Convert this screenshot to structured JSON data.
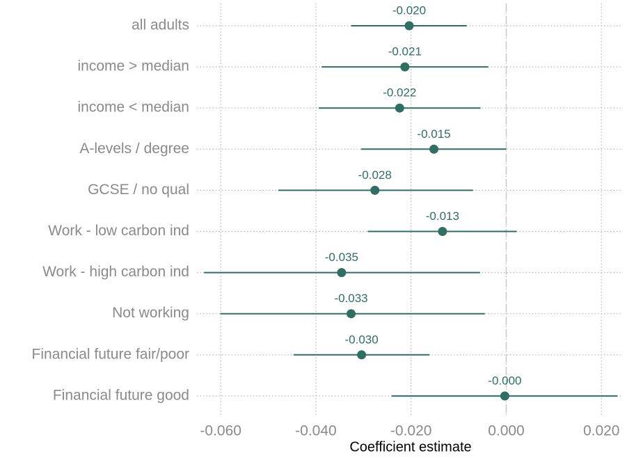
{
  "chart_data": {
    "type": "coefplot",
    "x_label": "Coefficient estimate",
    "categories": [
      "all adults",
      "income > median",
      "income < median",
      "A-levels / degree",
      "GCSE / no qual",
      "Work - low carbon ind",
      "Work - high carbon ind",
      "Not working",
      "Financial future fair/poor",
      "Financial future good"
    ],
    "values": [
      -0.0204,
      -0.0213,
      -0.0224,
      -0.0152,
      -0.0276,
      -0.0134,
      -0.0346,
      -0.0326,
      -0.0304,
      -0.0003
    ],
    "value_labels": [
      "-0.020",
      "-0.021",
      "-0.022",
      "-0.015",
      "-0.028",
      "-0.013",
      "-0.035",
      "-0.033",
      "-0.030",
      "-0.000"
    ],
    "lower": [
      -0.0326,
      -0.0388,
      -0.0394,
      -0.0305,
      -0.0479,
      -0.0291,
      -0.0635,
      -0.0601,
      -0.0447,
      -0.0241
    ],
    "upper": [
      -0.0083,
      -0.0038,
      -0.0054,
      0.0,
      -0.007,
      0.0022,
      -0.0055,
      -0.0045,
      -0.0161,
      0.0234
    ],
    "color": "#2f6e63",
    "xlim": [
      -0.065,
      0.0245
    ],
    "xticks": [
      {
        "value": -0.06,
        "label": "-0.060"
      },
      {
        "value": -0.04,
        "label": "-0.040"
      },
      {
        "value": -0.02,
        "label": "-0.020"
      },
      {
        "value": 0,
        "label": "0.000"
      },
      {
        "value": 0.02,
        "label": "0.020"
      }
    ],
    "grid": true
  }
}
